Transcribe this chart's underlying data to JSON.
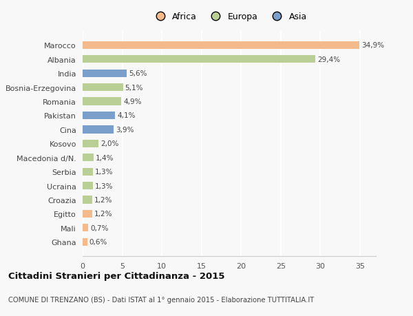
{
  "countries": [
    "Marocco",
    "Albania",
    "India",
    "Bosnia-Erzegovina",
    "Romania",
    "Pakistan",
    "Cina",
    "Kosovo",
    "Macedonia d/N.",
    "Serbia",
    "Ucraina",
    "Croazia",
    "Egitto",
    "Mali",
    "Ghana"
  ],
  "values": [
    34.9,
    29.4,
    5.6,
    5.1,
    4.9,
    4.1,
    3.9,
    2.0,
    1.4,
    1.3,
    1.3,
    1.2,
    1.2,
    0.7,
    0.6
  ],
  "labels": [
    "34,9%",
    "29,4%",
    "5,6%",
    "5,1%",
    "4,9%",
    "4,1%",
    "3,9%",
    "2,0%",
    "1,4%",
    "1,3%",
    "1,3%",
    "1,2%",
    "1,2%",
    "0,7%",
    "0,6%"
  ],
  "continents": [
    "Africa",
    "Europa",
    "Asia",
    "Europa",
    "Europa",
    "Asia",
    "Asia",
    "Europa",
    "Europa",
    "Europa",
    "Europa",
    "Europa",
    "Africa",
    "Africa",
    "Africa"
  ],
  "colors": {
    "Africa": "#F5BA8C",
    "Europa": "#BACF96",
    "Asia": "#7A9FCA"
  },
  "title_bold": "Cittadini Stranieri per Cittadinanza - 2015",
  "subtitle": "COMUNE DI TRENZANO (BS) - Dati ISTAT al 1° gennaio 2015 - Elaborazione TUTTITALIA.IT",
  "xlim": [
    0,
    37
  ],
  "xticks": [
    0,
    5,
    10,
    15,
    20,
    25,
    30,
    35
  ],
  "background_color": "#f8f8f8",
  "plot_bg_color": "#f8f8f8",
  "grid_color": "#ffffff",
  "bar_height": 0.55
}
